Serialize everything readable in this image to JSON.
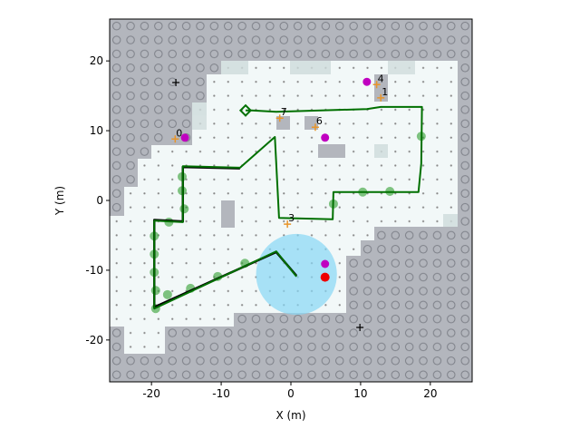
{
  "chart_data": {
    "type": "map",
    "xlabel": "X (m)",
    "ylabel": "Y (m)",
    "xlim": [
      -26,
      26
    ],
    "ylim": [
      -26,
      26
    ],
    "xticks": [
      -20,
      -10,
      0,
      10,
      20
    ],
    "yticks": [
      -20,
      -10,
      0,
      10,
      20
    ],
    "sensor_circle": {
      "x": 0.8,
      "y": -10.6,
      "r": 5.8,
      "color": "#87d7f5"
    },
    "estimate_path": {
      "color": "#007000",
      "x": [
        -6.5,
        -5.6,
        -2.1,
        10.9,
        12.9,
        18.8,
        18.7,
        18.3,
        6.1,
        6.0,
        -1.7,
        -2.3,
        -7.3,
        -15.5,
        -15.5,
        -19.6,
        -19.6,
        -2.1,
        0.8
      ],
      "y": [
        12.9,
        12.9,
        12.7,
        13.1,
        13.4,
        13.4,
        5.3,
        1.2,
        1.2,
        -2.7,
        -2.5,
        9.1,
        4.7,
        4.9,
        -3.1,
        -2.9,
        -15.5,
        -7.3,
        -10.9
      ]
    },
    "trajectory": {
      "color": "#000000",
      "x": [
        -7.3,
        -15.5,
        -15.5,
        -19.6,
        -19.6,
        -2.1,
        0.8
      ],
      "y": [
        4.6,
        4.8,
        -3.0,
        -2.8,
        -15.3,
        -7.4,
        -10.8
      ]
    },
    "poses": {
      "color": "#2e9e2e",
      "x": [
        -15.6,
        -15.6,
        -15.3,
        -17.5,
        -19.6,
        -19.6,
        -19.6,
        -19.4,
        -17.7,
        -14.4,
        -10.5,
        -6.6,
        10.3,
        14.2,
        6.1,
        18.7,
        -19.4
      ],
      "y": [
        3.4,
        1.4,
        -1.2,
        -3.1,
        -5.1,
        -7.7,
        -10.3,
        -12.9,
        -13.5,
        -12.6,
        -10.9,
        -9.0,
        1.2,
        1.3,
        -0.5,
        9.2,
        -15.5
      ]
    },
    "landmarks": {
      "color": "#e8952b",
      "x": [
        -16.6,
        12.9,
        -0.5,
        12.3,
        3.5,
        -1.6
      ],
      "y": [
        8.8,
        14.7,
        -3.4,
        16.6,
        10.5,
        11.8
      ],
      "labels": [
        "0",
        "1",
        "3",
        "4",
        "6",
        "7"
      ]
    },
    "magenta_points": {
      "color": "#c000c0",
      "x": [
        -15.2,
        10.9,
        4.9,
        4.9
      ],
      "y": [
        9.0,
        17.0,
        9.0,
        -9.1
      ]
    },
    "crosses": {
      "color": "#000000",
      "x": [
        -16.5,
        9.9
      ],
      "y": [
        16.9,
        -18.2
      ]
    },
    "robot": {
      "color": "#ee0000",
      "x": [
        4.9
      ],
      "y": [
        -11.0
      ]
    }
  }
}
